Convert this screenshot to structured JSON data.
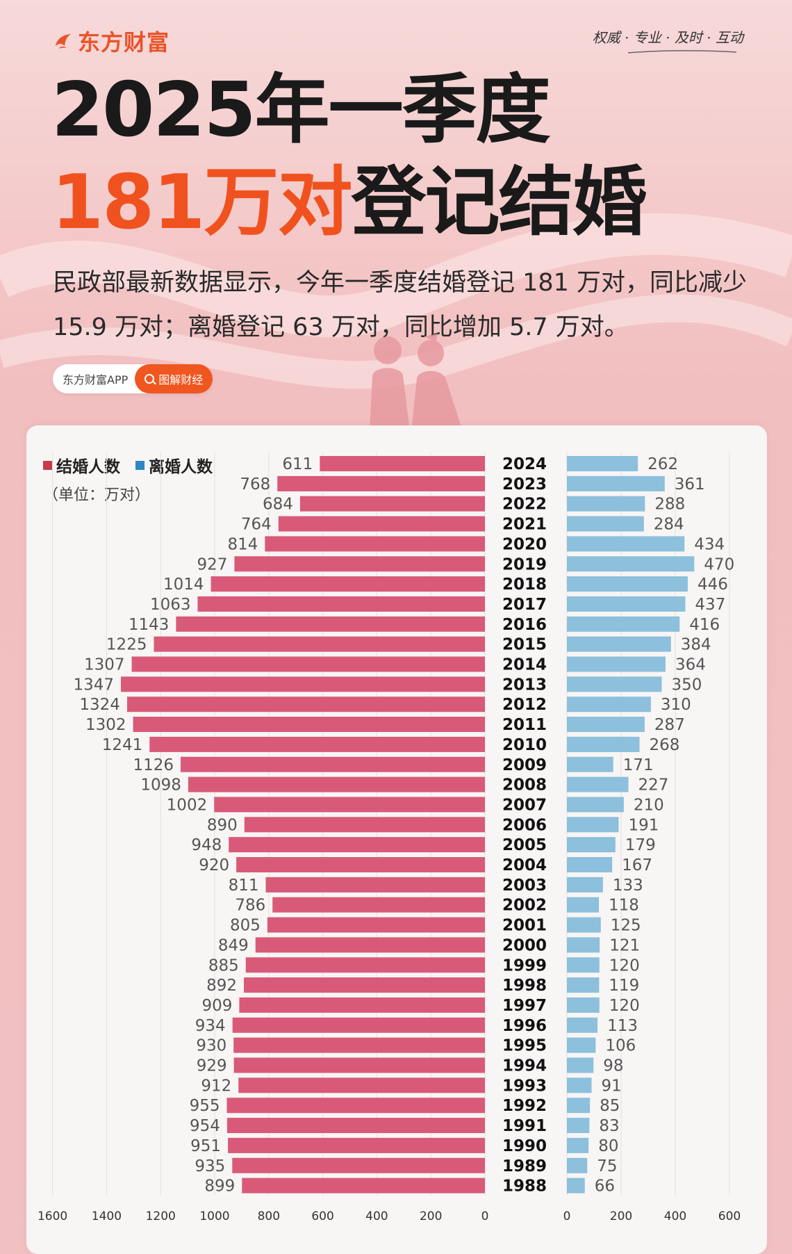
{
  "header": {
    "logo_text": "东方财富",
    "slogan": "权威 · 专业 · 及时 · 互动"
  },
  "title": {
    "line1": "2025年一季度",
    "line2_highlight": "181万对",
    "line2_rest": "登记结婚"
  },
  "description": "民政部最新数据显示，今年一季度结婚登记 181 万对，同比减少 15.9 万对；离婚登记 63 万对，同比增加 5.7 万对。",
  "app_badge": {
    "app_name": "东方财富APP",
    "button_label": "图解财经"
  },
  "colors": {
    "marriage": "#d85a78",
    "divorce": "#8cc0dc",
    "accent": "#f0521f"
  },
  "chart_data": {
    "type": "bar",
    "orientation": "horizontal-butterfly",
    "unit_label": "（单位：万对）",
    "categories": [
      "2024",
      "2023",
      "2022",
      "2021",
      "2020",
      "2019",
      "2018",
      "2017",
      "2016",
      "2015",
      "2014",
      "2013",
      "2012",
      "2011",
      "2010",
      "2009",
      "2008",
      "2007",
      "2006",
      "2005",
      "2004",
      "2003",
      "2002",
      "2001",
      "2000",
      "1999",
      "1998",
      "1997",
      "1996",
      "1995",
      "1994",
      "1993",
      "1992",
      "1991",
      "1990",
      "1989",
      "1988"
    ],
    "series": [
      {
        "name": "结婚人数",
        "values": [
          611,
          768,
          684,
          764,
          814,
          927,
          1014,
          1063,
          1143,
          1225,
          1307,
          1347,
          1324,
          1302,
          1241,
          1126,
          1098,
          1002,
          890,
          948,
          920,
          811,
          786,
          805,
          849,
          885,
          892,
          909,
          934,
          930,
          929,
          912,
          955,
          954,
          951,
          935,
          899
        ]
      },
      {
        "name": "离婚人数",
        "values": [
          262,
          361,
          288,
          284,
          434,
          470,
          446,
          437,
          416,
          384,
          364,
          350,
          310,
          287,
          268,
          171,
          227,
          210,
          191,
          179,
          167,
          133,
          118,
          125,
          121,
          120,
          119,
          120,
          113,
          106,
          98,
          91,
          85,
          83,
          80,
          75,
          66
        ]
      }
    ],
    "left_axis": {
      "range": [
        0,
        1600
      ],
      "ticks": [
        "1600",
        "1400",
        "1200",
        "1000",
        "800",
        "600",
        "400",
        "200",
        "0"
      ]
    },
    "right_axis": {
      "range": [
        0,
        600
      ],
      "ticks": [
        "0",
        "200",
        "400",
        "600"
      ]
    },
    "legend_position": "top-left",
    "grid": true
  }
}
